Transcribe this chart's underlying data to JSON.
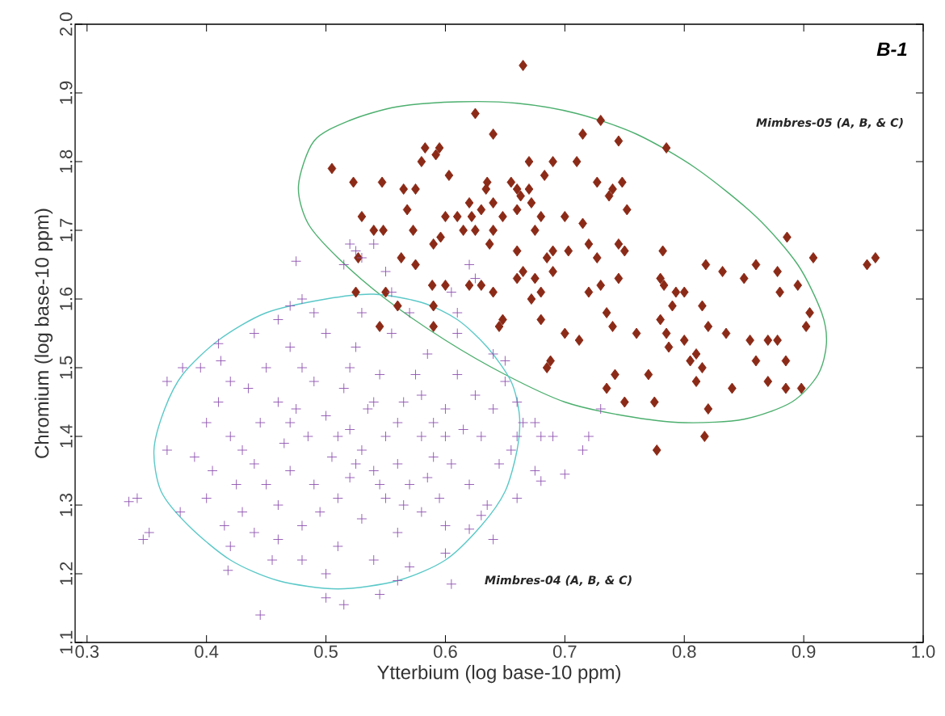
{
  "chart_data": {
    "type": "scatter",
    "xlabel": "Ytterbium (log base-10 ppm)",
    "ylabel": "Chromium (log base-10 ppm)",
    "annotations": [
      "B-1"
    ],
    "xlim": [
      0.29,
      1.0
    ],
    "ylim": [
      1.1,
      2.0
    ],
    "xticks": [
      0.3,
      0.4,
      0.5,
      0.6,
      0.7,
      0.8,
      0.9,
      {
        "value": 1.0,
        "label": "1.0"
      }
    ],
    "yticks": [
      1.1,
      1.2,
      1.3,
      1.4,
      1.5,
      1.6,
      1.7,
      1.8,
      1.9,
      {
        "value": 2.0,
        "label": "2.0"
      }
    ],
    "series": [
      {
        "name": "Mimbres-05 (A, B, & C)",
        "type": "scatter",
        "marker": "diamond",
        "color": "#8b2a17",
        "x": [
          0.665,
          0.625,
          0.73,
          0.505,
          0.523,
          0.547,
          0.64,
          0.715,
          0.745,
          0.785,
          0.583,
          0.595,
          0.58,
          0.603,
          0.575,
          0.592,
          0.67,
          0.69,
          0.74,
          0.748,
          0.71,
          0.683,
          0.655,
          0.635,
          0.53,
          0.54,
          0.548,
          0.565,
          0.568,
          0.573,
          0.575,
          0.563,
          0.527,
          0.525,
          0.589,
          0.59,
          0.596,
          0.61,
          0.615,
          0.62,
          0.622,
          0.625,
          0.63,
          0.634,
          0.64,
          0.64,
          0.637,
          0.648,
          0.66,
          0.663,
          0.67,
          0.66,
          0.672,
          0.675,
          0.68,
          0.69,
          0.685,
          0.7,
          0.703,
          0.715,
          0.72,
          0.727,
          0.737,
          0.745,
          0.75,
          0.752,
          0.66,
          0.665,
          0.675,
          0.68,
          0.69,
          0.672,
          0.68,
          0.66,
          0.64,
          0.63,
          0.62,
          0.6,
          0.59,
          0.59,
          0.56,
          0.545,
          0.55,
          0.6,
          0.648,
          0.645,
          0.685,
          0.688,
          0.7,
          0.712,
          0.72,
          0.73,
          0.735,
          0.74,
          0.745,
          0.75,
          0.735,
          0.742,
          0.76,
          0.77,
          0.775,
          0.777,
          0.78,
          0.78,
          0.783,
          0.785,
          0.787,
          0.79,
          0.793,
          0.782,
          0.8,
          0.8,
          0.805,
          0.81,
          0.81,
          0.815,
          0.815,
          0.817,
          0.82,
          0.82,
          0.818,
          0.832,
          0.835,
          0.84,
          0.85,
          0.855,
          0.86,
          0.86,
          0.87,
          0.87,
          0.878,
          0.88,
          0.878,
          0.885,
          0.885,
          0.886,
          0.895,
          0.898,
          0.902,
          0.905,
          0.908,
          0.953,
          0.96,
          0.727
        ],
        "values": [
          1.94,
          1.87,
          1.86,
          1.79,
          1.77,
          1.77,
          1.84,
          1.84,
          1.83,
          1.82,
          1.82,
          1.82,
          1.8,
          1.78,
          1.76,
          1.81,
          1.8,
          1.8,
          1.76,
          1.77,
          1.8,
          1.78,
          1.77,
          1.77,
          1.72,
          1.7,
          1.7,
          1.76,
          1.73,
          1.7,
          1.65,
          1.66,
          1.66,
          1.61,
          1.62,
          1.68,
          1.69,
          1.72,
          1.7,
          1.74,
          1.72,
          1.7,
          1.73,
          1.76,
          1.74,
          1.7,
          1.68,
          1.72,
          1.76,
          1.75,
          1.76,
          1.73,
          1.74,
          1.7,
          1.72,
          1.67,
          1.66,
          1.72,
          1.67,
          1.71,
          1.68,
          1.77,
          1.75,
          1.68,
          1.67,
          1.73,
          1.67,
          1.64,
          1.63,
          1.61,
          1.64,
          1.6,
          1.57,
          1.63,
          1.61,
          1.62,
          1.62,
          1.62,
          1.59,
          1.56,
          1.59,
          1.56,
          1.61,
          1.72,
          1.57,
          1.56,
          1.5,
          1.51,
          1.55,
          1.54,
          1.61,
          1.62,
          1.58,
          1.56,
          1.63,
          1.45,
          1.47,
          1.49,
          1.55,
          1.49,
          1.45,
          1.38,
          1.57,
          1.63,
          1.62,
          1.55,
          1.53,
          1.59,
          1.61,
          1.67,
          1.61,
          1.54,
          1.51,
          1.48,
          1.52,
          1.59,
          1.5,
          1.4,
          1.44,
          1.56,
          1.65,
          1.64,
          1.55,
          1.47,
          1.63,
          1.54,
          1.65,
          1.51,
          1.48,
          1.54,
          1.54,
          1.61,
          1.64,
          1.51,
          1.47,
          1.69,
          1.62,
          1.47,
          1.56,
          1.58,
          1.66,
          1.65,
          1.66,
          1.66
        ]
      },
      {
        "name": "Mimbres-04 (A, B, & C)",
        "type": "scatter",
        "marker": "cross",
        "color": "#8e52b0",
        "x": [
          0.335,
          0.342,
          0.347,
          0.352,
          0.367,
          0.367,
          0.38,
          0.378,
          0.395,
          0.41,
          0.412,
          0.418,
          0.42,
          0.445,
          0.475,
          0.48,
          0.47,
          0.5,
          0.515,
          0.545,
          0.56,
          0.605,
          0.52,
          0.525,
          0.54,
          0.53,
          0.515,
          0.55,
          0.555,
          0.62,
          0.625,
          0.605,
          0.61,
          0.64,
          0.65,
          0.66,
          0.665,
          0.675,
          0.68,
          0.69,
          0.675,
          0.68,
          0.7,
          0.715,
          0.72,
          0.73,
          0.655,
          0.66,
          0.64,
          0.62,
          0.63,
          0.39,
          0.4,
          0.405,
          0.41,
          0.42,
          0.425,
          0.43,
          0.43,
          0.435,
          0.44,
          0.44,
          0.445,
          0.45,
          0.45,
          0.455,
          0.46,
          0.46,
          0.465,
          0.47,
          0.47,
          0.475,
          0.48,
          0.48,
          0.485,
          0.49,
          0.49,
          0.495,
          0.5,
          0.5,
          0.505,
          0.51,
          0.51,
          0.515,
          0.52,
          0.52,
          0.525,
          0.53,
          0.53,
          0.535,
          0.54,
          0.54,
          0.545,
          0.55,
          0.55,
          0.555,
          0.56,
          0.56,
          0.565,
          0.57,
          0.575,
          0.58,
          0.58,
          0.585,
          0.59,
          0.595,
          0.6,
          0.6,
          0.605,
          0.61,
          0.615,
          0.62,
          0.625,
          0.63,
          0.635,
          0.64,
          0.645,
          0.65,
          0.66,
          0.61,
          0.57,
          0.53,
          0.49,
          0.46,
          0.44,
          0.42,
          0.4,
          0.415,
          0.46,
          0.5,
          0.57,
          0.6,
          0.47,
          0.48,
          0.52,
          0.54,
          0.56,
          0.58,
          0.59,
          0.6,
          0.51,
          0.525,
          0.545,
          0.565,
          0.585
        ],
        "values": [
          1.305,
          1.31,
          1.25,
          1.26,
          1.48,
          1.38,
          1.5,
          1.29,
          1.5,
          1.535,
          1.51,
          1.205,
          1.24,
          1.14,
          1.655,
          1.6,
          1.59,
          1.165,
          1.155,
          1.17,
          1.19,
          1.185,
          1.68,
          1.67,
          1.68,
          1.66,
          1.65,
          1.64,
          1.61,
          1.65,
          1.63,
          1.61,
          1.58,
          1.52,
          1.51,
          1.45,
          1.42,
          1.42,
          1.4,
          1.4,
          1.35,
          1.335,
          1.345,
          1.38,
          1.4,
          1.44,
          1.38,
          1.31,
          1.25,
          1.265,
          1.285,
          1.37,
          1.42,
          1.35,
          1.45,
          1.4,
          1.33,
          1.38,
          1.29,
          1.47,
          1.26,
          1.36,
          1.42,
          1.5,
          1.33,
          1.22,
          1.45,
          1.3,
          1.39,
          1.53,
          1.35,
          1.44,
          1.27,
          1.22,
          1.4,
          1.48,
          1.33,
          1.29,
          1.43,
          1.55,
          1.37,
          1.31,
          1.24,
          1.47,
          1.41,
          1.34,
          1.53,
          1.38,
          1.28,
          1.44,
          1.35,
          1.22,
          1.49,
          1.4,
          1.31,
          1.55,
          1.36,
          1.26,
          1.45,
          1.33,
          1.49,
          1.4,
          1.29,
          1.52,
          1.37,
          1.31,
          1.44,
          1.27,
          1.36,
          1.49,
          1.41,
          1.33,
          1.46,
          1.4,
          1.3,
          1.44,
          1.36,
          1.48,
          1.4,
          1.55,
          1.58,
          1.58,
          1.58,
          1.57,
          1.55,
          1.48,
          1.31,
          1.27,
          1.25,
          1.2,
          1.21,
          1.23,
          1.42,
          1.5,
          1.5,
          1.45,
          1.42,
          1.46,
          1.42,
          1.4,
          1.4,
          1.36,
          1.33,
          1.3,
          1.34
        ]
      }
    ]
  }
}
